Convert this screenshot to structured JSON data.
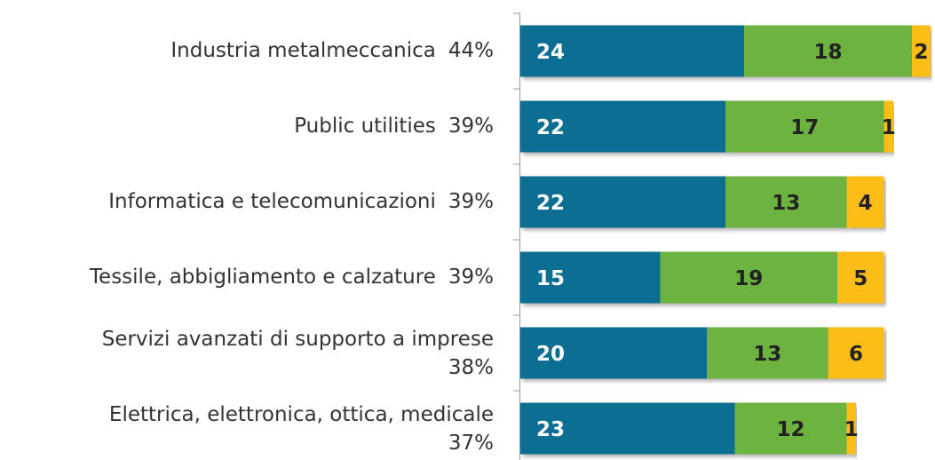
{
  "chart_data": {
    "type": "stacked-barh",
    "categories": [
      "Industria metalmeccanica",
      "Public utilities",
      "Informatica e telecomunicazioni",
      "Tessile, abbigliamento e calzature",
      "Servizi avanzati di supporto a imprese",
      "Elettrica, elettronica, ottica, medicale"
    ],
    "totals": {
      "values": [
        44,
        39,
        39,
        39,
        38,
        37
      ],
      "value_labels": [
        "44%",
        "39%",
        "39%",
        "39%",
        "38%",
        "37%"
      ]
    },
    "series": [
      {
        "color": "#0f6e93",
        "values": [
          24,
          22,
          22,
          15,
          20,
          23
        ]
      },
      {
        "color": "#6db33f",
        "values": [
          18,
          17,
          13,
          19,
          13,
          12
        ]
      },
      {
        "color": "#fbbd16",
        "values": [
          2,
          1,
          4,
          5,
          6,
          1
        ]
      }
    ],
    "xlim": [
      0,
      44
    ]
  }
}
